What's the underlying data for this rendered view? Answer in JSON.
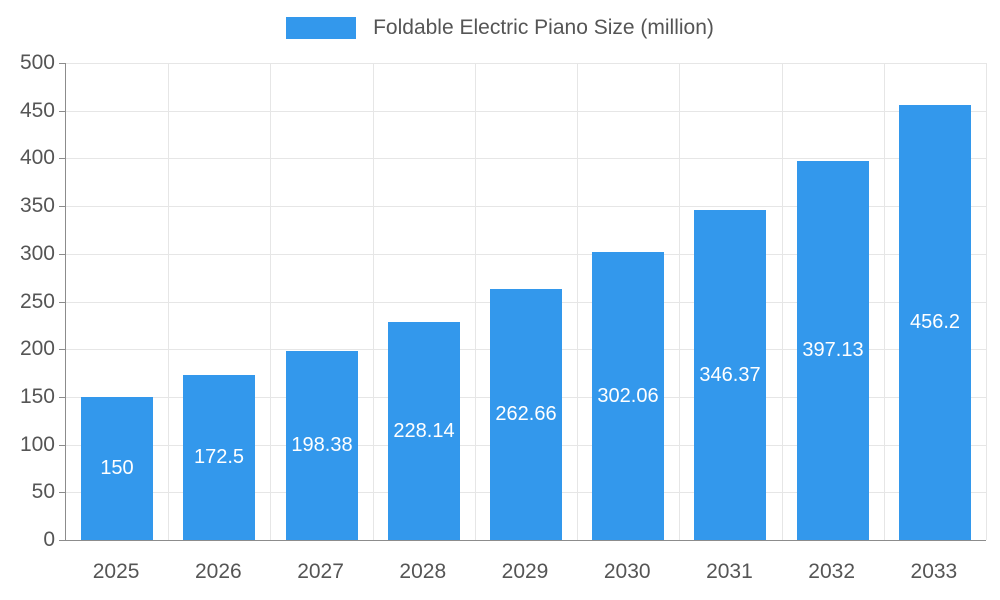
{
  "chart_data": {
    "type": "bar",
    "title": "Foldable Electric Piano Size (million)",
    "categories": [
      "2025",
      "2026",
      "2027",
      "2028",
      "2029",
      "2030",
      "2031",
      "2032",
      "2033"
    ],
    "values": [
      150,
      172.5,
      198.38,
      228.14,
      262.66,
      302.06,
      346.37,
      397.13,
      456.2
    ],
    "labels": [
      "150",
      "172.5",
      "198.38",
      "228.14",
      "262.66",
      "302.06",
      "346.37",
      "397.13",
      "456.2"
    ],
    "xlabel": "",
    "ylabel": "",
    "ylim": [
      0,
      500
    ],
    "ytick_step": 50,
    "grid": true,
    "legend_position": "top-center",
    "legend": [
      "Foldable Electric Piano Size (million)"
    ],
    "bar_color": "#3398ec",
    "bar_label_color": "#ffffff",
    "axis_text_color": "#555555",
    "grid_color": "#e6e6e6",
    "axis_line_color": "#8c8c8c"
  }
}
